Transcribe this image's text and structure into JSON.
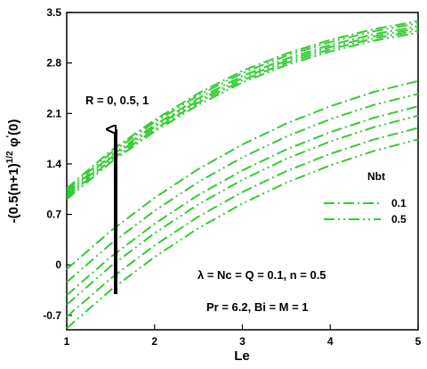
{
  "chart_data": {
    "type": "line",
    "xlabel": "Le",
    "ylabel": "-(0.5(n+1))^{1/2} φ'(0)",
    "xlim": [
      1,
      5
    ],
    "ylim": [
      -0.9,
      3.5
    ],
    "x_ticks": [
      "1",
      "2",
      "3",
      "4",
      "5"
    ],
    "y_ticks": [
      "-0.7",
      "0",
      "0.7",
      "1.4",
      "2.1",
      "2.8",
      "3.5"
    ],
    "grid": false,
    "line_color": "#33cc33",
    "legend": {
      "title": "Nbt",
      "placement": "right",
      "entries": [
        {
          "label": "0.1",
          "style": "dash-dot"
        },
        {
          "label": "0.5",
          "style": "dash-dot-dot"
        }
      ]
    },
    "annotations": {
      "arrow_label": "R = 0, 0.5, 1",
      "params_line1": "λ = Nc = Q = 0.1, n = 0.5",
      "params_line2": "Pr = 6.2, Bi = M = 1"
    },
    "x": [
      1,
      1.5,
      2,
      2.5,
      3,
      3.5,
      4,
      4.5,
      5
    ],
    "series": [
      {
        "name": "0.1",
        "style": "dash-dot",
        "values": [
          1.06,
          1.58,
          2.01,
          2.38,
          2.69,
          2.93,
          3.12,
          3.27,
          3.38
        ]
      },
      {
        "name": "0.5",
        "style": "dash-dot-dot",
        "values": [
          1.03,
          1.55,
          1.98,
          2.35,
          2.66,
          2.9,
          3.09,
          3.24,
          3.35
        ]
      },
      {
        "name": "0.1",
        "style": "dash-dot",
        "values": [
          1.0,
          1.51,
          1.94,
          2.31,
          2.62,
          2.86,
          3.05,
          3.2,
          3.31
        ]
      },
      {
        "name": "0.5",
        "style": "dash-dot-dot",
        "values": [
          0.97,
          1.48,
          1.91,
          2.28,
          2.59,
          2.83,
          3.02,
          3.17,
          3.28
        ]
      },
      {
        "name": "0.1",
        "style": "dash-dot",
        "values": [
          0.94,
          1.45,
          1.88,
          2.25,
          2.56,
          2.8,
          2.99,
          3.14,
          3.25
        ]
      },
      {
        "name": "0.5",
        "style": "dash-dot-dot",
        "values": [
          0.91,
          1.42,
          1.85,
          2.22,
          2.53,
          2.77,
          2.96,
          3.11,
          3.22
        ]
      },
      {
        "name": "0.1",
        "style": "dash-dot",
        "values": [
          -0.06,
          0.47,
          0.93,
          1.33,
          1.67,
          1.96,
          2.2,
          2.4,
          2.55
        ]
      },
      {
        "name": "0.5",
        "style": "dash-dot-dot",
        "values": [
          -0.24,
          0.29,
          0.75,
          1.15,
          1.49,
          1.78,
          2.02,
          2.22,
          2.37
        ]
      },
      {
        "name": "0.1",
        "style": "dash-dot",
        "values": [
          -0.42,
          0.11,
          0.57,
          0.97,
          1.31,
          1.6,
          1.84,
          2.04,
          2.2
        ]
      },
      {
        "name": "0.5",
        "style": "dash-dot-dot",
        "values": [
          -0.55,
          -0.02,
          0.44,
          0.84,
          1.18,
          1.47,
          1.71,
          1.91,
          2.07
        ]
      },
      {
        "name": "0.1",
        "style": "dash-dot",
        "values": [
          -0.72,
          -0.19,
          0.27,
          0.67,
          1.01,
          1.3,
          1.54,
          1.74,
          1.9
        ]
      },
      {
        "name": "0.5",
        "style": "dash-dot-dot",
        "values": [
          -0.88,
          -0.35,
          0.11,
          0.51,
          0.85,
          1.14,
          1.38,
          1.58,
          1.74
        ]
      }
    ]
  }
}
